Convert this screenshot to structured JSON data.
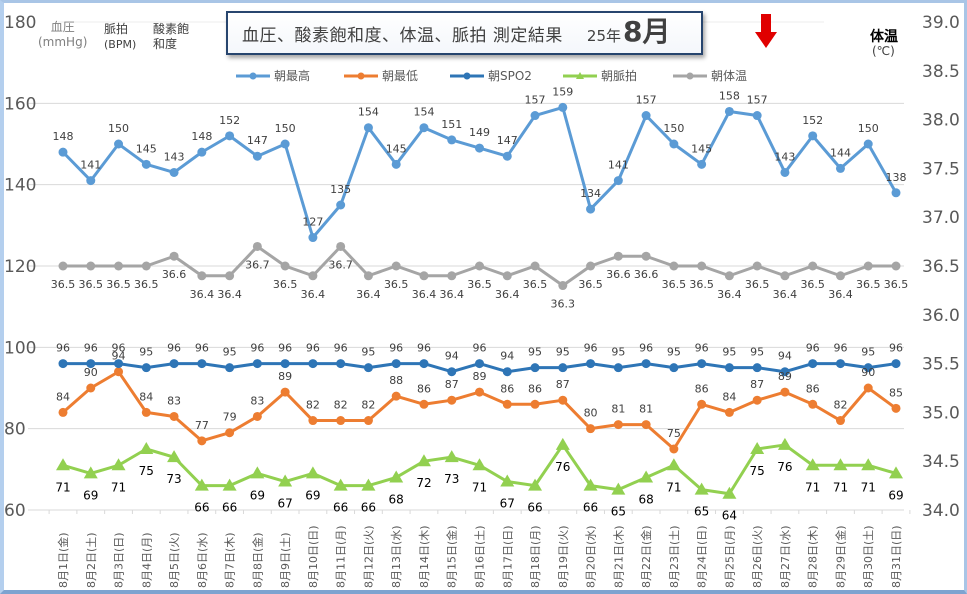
{
  "chart_data": {
    "type": "line",
    "title": "血圧、酸素飽和度、体温、脈拍 測定結果",
    "title_year": "25年",
    "title_month": "8月",
    "left_axis": {
      "ylim": [
        60,
        180
      ],
      "ticks": [
        "60",
        "80",
        "100",
        "120",
        "140",
        "160",
        "180"
      ],
      "unit_labels": [
        {
          "text": "血圧",
          "sub": "(mmHg)"
        },
        {
          "text": "脈拍",
          "sub": "(BPM)"
        },
        {
          "text": "酸素飽",
          "sub": "和度"
        }
      ]
    },
    "right_axis": {
      "ylim": [
        34.0,
        39.0
      ],
      "ticks": [
        "34.0",
        "34.5",
        "35.0",
        "35.5",
        "36.0",
        "36.5",
        "37.0",
        "37.5",
        "38.0",
        "38.5",
        "39.0"
      ],
      "title": "体温",
      "unit": "(℃)"
    },
    "grid": true,
    "legend_position": "top",
    "categories": [
      "8月1日(金)",
      "8月2日(土)",
      "8月3日(日)",
      "8月4日(月)",
      "8月5日(火)",
      "8月6日(水)",
      "8月7日(木)",
      "8月8日(金)",
      "8月9日(土)",
      "8月10日(日)",
      "8月11日(月)",
      "8月12日(火)",
      "8月13日(水)",
      "8月14日(木)",
      "8月15日(金)",
      "8月16日(土)",
      "8月17日(日)",
      "8月18日(月)",
      "8月19日(火)",
      "8月20日(水)",
      "8月21日(木)",
      "8月22日(金)",
      "8月23日(土)",
      "8月24日(日)",
      "8月25日(月)",
      "8月26日(火)",
      "8月27日(水)",
      "8月28日(木)",
      "8月29日(金)",
      "8月30日(土)",
      "8月31日(日)"
    ],
    "series": [
      {
        "name": "朝最高",
        "axis": "left",
        "color": "#5b9bd5",
        "marker": "circle",
        "values": [
          148,
          141,
          150,
          145,
          143,
          148,
          152,
          147,
          150,
          127,
          135,
          154,
          145,
          154,
          151,
          149,
          147,
          157,
          159,
          134,
          141,
          157,
          150,
          145,
          158,
          157,
          143,
          152,
          144,
          150,
          138
        ]
      },
      {
        "name": "朝最低",
        "axis": "left",
        "color": "#ed7d31",
        "marker": "circle",
        "values": [
          84,
          90,
          94,
          84,
          83,
          77,
          79,
          83,
          89,
          82,
          82,
          82,
          88,
          86,
          87,
          89,
          86,
          86,
          87,
          80,
          81,
          81,
          75,
          86,
          84,
          87,
          89,
          86,
          82,
          90,
          85
        ]
      },
      {
        "name": "朝SPO2",
        "axis": "left",
        "color": "#2e75b6",
        "marker": "circle",
        "values": [
          96,
          96,
          96,
          95,
          96,
          96,
          95,
          96,
          96,
          96,
          96,
          95,
          96,
          96,
          94,
          96,
          94,
          95,
          95,
          96,
          95,
          96,
          95,
          96,
          95,
          95,
          94,
          96,
          96,
          95,
          96
        ]
      },
      {
        "name": "朝脈拍",
        "axis": "left",
        "color": "#92d050",
        "marker": "triangle",
        "values": [
          71,
          69,
          71,
          75,
          73,
          66,
          66,
          69,
          67,
          69,
          66,
          66,
          68,
          72,
          73,
          71,
          67,
          66,
          76,
          66,
          65,
          68,
          71,
          65,
          64,
          75,
          76,
          71,
          71,
          71,
          69
        ]
      },
      {
        "name": "朝体温",
        "axis": "right",
        "color": "#a5a5a5",
        "marker": "circle",
        "values": [
          36.5,
          36.5,
          36.5,
          36.5,
          36.6,
          36.4,
          36.4,
          36.7,
          36.5,
          36.4,
          36.7,
          36.4,
          36.5,
          36.4,
          36.4,
          36.5,
          36.4,
          36.5,
          36.3,
          36.5,
          36.6,
          36.6,
          36.5,
          36.5,
          36.4,
          36.5,
          36.4,
          36.5,
          36.4,
          36.5,
          36.5
        ]
      }
    ],
    "annotations": [
      {
        "type": "down-arrow",
        "color": "#e00000",
        "near_category": "8月26日(火)"
      }
    ]
  }
}
